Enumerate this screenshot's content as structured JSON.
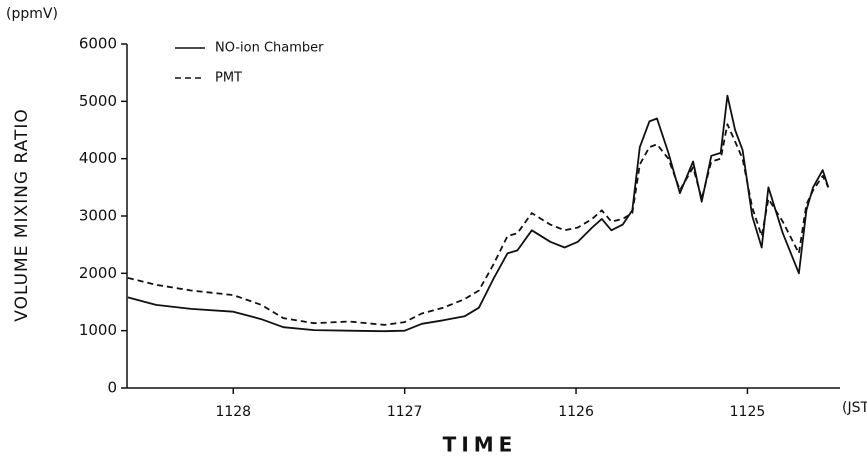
{
  "chart_data": {
    "type": "line",
    "y_unit": "(ppmV)",
    "ylabel": "VOLUME MIXING RATIO",
    "xlabel": "TIME",
    "x_unit": "(JST)",
    "x": [
      1128.615,
      1128.451,
      1128.246,
      1128.0,
      1127.836,
      1127.708,
      1127.528,
      1127.323,
      1127.118,
      1127.0,
      1126.9,
      1126.775,
      1126.65,
      1126.567,
      1126.483,
      1126.4,
      1126.342,
      1126.258,
      1126.15,
      1126.067,
      1125.989,
      1125.906,
      1125.85,
      1125.794,
      1125.728,
      1125.672,
      1125.628,
      1125.572,
      1125.528,
      1125.461,
      1125.394,
      1125.317,
      1125.267,
      1125.211,
      1125.156,
      1125.117,
      1125.072,
      1125.028,
      1124.972,
      1124.917,
      1124.878,
      1124.794,
      1124.7,
      1124.656,
      1124.617,
      1124.561,
      1124.528
    ],
    "series": [
      {
        "name": "NO-ion Chamber",
        "color": "#111111",
        "dashed": false,
        "values": [
          1580,
          1450,
          1380,
          1330,
          1200,
          1060,
          1010,
          1000,
          990,
          1000,
          1120,
          1180,
          1250,
          1400,
          1900,
          2350,
          2400,
          2750,
          2550,
          2450,
          2550,
          2800,
          2950,
          2750,
          2850,
          3100,
          4200,
          4650,
          4700,
          4100,
          3400,
          3950,
          3250,
          4050,
          4100,
          5100,
          4500,
          4150,
          3000,
          2450,
          3500,
          2700,
          2000,
          3100,
          3500,
          3800,
          3500
        ]
      },
      {
        "name": "PMT",
        "color": "#111111",
        "dashed": true,
        "values": [
          1920,
          1800,
          1700,
          1620,
          1450,
          1220,
          1130,
          1160,
          1100,
          1150,
          1300,
          1400,
          1550,
          1700,
          2150,
          2650,
          2700,
          3050,
          2850,
          2750,
          2800,
          2950,
          3100,
          2900,
          2950,
          3050,
          3900,
          4200,
          4250,
          4000,
          3450,
          3850,
          3300,
          3950,
          4000,
          4600,
          4300,
          4000,
          3150,
          2650,
          3300,
          2900,
          2350,
          3200,
          3450,
          3700,
          3500
        ]
      }
    ],
    "xlim": [
      1128.62,
      1124.46
    ],
    "xticks": [
      1128,
      1127,
      1126,
      1125
    ],
    "ylim": [
      0,
      6000
    ],
    "yticks": [
      0,
      1000,
      2000,
      3000,
      4000,
      5000,
      6000
    ],
    "grid": false,
    "legend": "upper left"
  }
}
